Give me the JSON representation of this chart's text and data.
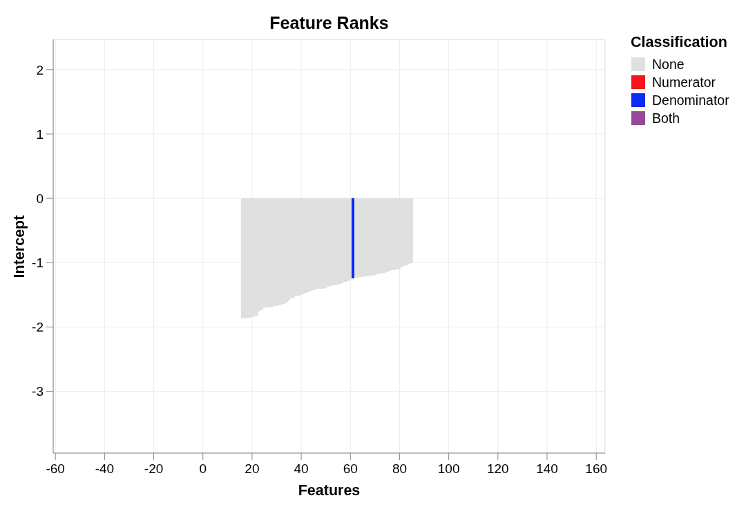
{
  "chart_data": {
    "type": "bar",
    "title": "Feature Ranks",
    "xlabel": "Features",
    "ylabel": "Intercept",
    "legend_title": "Classification",
    "legend": "top right",
    "grid": true,
    "xlim": [
      -60.9,
      163.6
    ],
    "xticks": [
      -60,
      -40,
      -20,
      0,
      20,
      40,
      60,
      80,
      100,
      120,
      140,
      160
    ],
    "ylim": [
      -3.96,
      2.47
    ],
    "yticks": [
      -3,
      -2,
      -1,
      0,
      1,
      2
    ],
    "x": [
      16,
      17,
      18,
      19,
      20,
      21,
      22,
      23,
      24,
      25,
      26,
      27,
      28,
      29,
      30,
      31,
      32,
      33,
      34,
      35,
      36,
      37,
      38,
      39,
      40,
      41,
      42,
      43,
      44,
      45,
      46,
      47,
      48,
      49,
      50,
      51,
      52,
      53,
      54,
      55,
      56,
      57,
      58,
      59,
      60,
      61,
      62,
      63,
      64,
      65,
      66,
      67,
      68,
      69,
      70,
      71,
      72,
      73,
      74,
      75,
      76,
      77,
      78,
      79,
      80,
      81,
      82,
      83,
      84,
      85
    ],
    "series": [
      {
        "name": "None",
        "color": "#e0e0e0",
        "values": [
          -1.87,
          -1.87,
          -1.86,
          -1.86,
          -1.85,
          -1.83,
          -1.82,
          -1.76,
          -1.74,
          -1.71,
          -1.7,
          -1.69,
          -1.69,
          -1.67,
          -1.67,
          -1.66,
          -1.65,
          -1.64,
          -1.62,
          -1.59,
          -1.56,
          -1.54,
          -1.52,
          -1.51,
          -1.5,
          -1.48,
          -1.47,
          -1.46,
          -1.44,
          -1.43,
          -1.42,
          -1.41,
          -1.4,
          -1.4,
          -1.39,
          -1.37,
          -1.36,
          -1.35,
          -1.35,
          -1.34,
          -1.33,
          -1.31,
          -1.3,
          -1.29,
          -1.27,
          null,
          -1.23,
          -1.23,
          -1.22,
          -1.22,
          -1.21,
          -1.21,
          -1.2,
          -1.2,
          -1.19,
          -1.18,
          -1.17,
          -1.17,
          -1.16,
          -1.15,
          -1.13,
          -1.12,
          -1.11,
          -1.1,
          -1.09,
          -1.06,
          -1.05,
          -1.04,
          -1.02,
          -1.01
        ]
      },
      {
        "name": "Numerator",
        "color": "#f8141e",
        "values": [
          null,
          null,
          null,
          null,
          null,
          null,
          null,
          null,
          null,
          null,
          null,
          null,
          null,
          null,
          null,
          null,
          null,
          null,
          null,
          null,
          null,
          null,
          null,
          null,
          null,
          null,
          null,
          null,
          null,
          null,
          null,
          null,
          null,
          null,
          null,
          null,
          null,
          null,
          null,
          null,
          null,
          null,
          null,
          null,
          null,
          null,
          null,
          null,
          null,
          null,
          null,
          null,
          null,
          null,
          null,
          null,
          null,
          null,
          null,
          null,
          null,
          null,
          null,
          null,
          null,
          null,
          null,
          null,
          null,
          null
        ]
      },
      {
        "name": "Denominator",
        "color": "#0b2af5",
        "values": [
          null,
          null,
          null,
          null,
          null,
          null,
          null,
          null,
          null,
          null,
          null,
          null,
          null,
          null,
          null,
          null,
          null,
          null,
          null,
          null,
          null,
          null,
          null,
          null,
          null,
          null,
          null,
          null,
          null,
          null,
          null,
          null,
          null,
          null,
          null,
          null,
          null,
          null,
          null,
          null,
          null,
          null,
          null,
          null,
          null,
          -1.24,
          null,
          null,
          null,
          null,
          null,
          null,
          null,
          null,
          null,
          null,
          null,
          null,
          null,
          null,
          null,
          null,
          null,
          null,
          null,
          null,
          null,
          null,
          null,
          null
        ]
      },
      {
        "name": "Both",
        "color": "#974a97",
        "values": [
          null,
          null,
          null,
          null,
          null,
          null,
          null,
          null,
          null,
          null,
          null,
          null,
          null,
          null,
          null,
          null,
          null,
          null,
          null,
          null,
          null,
          null,
          null,
          null,
          null,
          null,
          null,
          null,
          null,
          null,
          null,
          null,
          null,
          null,
          null,
          null,
          null,
          null,
          null,
          null,
          null,
          null,
          null,
          null,
          null,
          null,
          null,
          null,
          null,
          null,
          null,
          null,
          null,
          null,
          null,
          null,
          null,
          null,
          null,
          null,
          null,
          null,
          null,
          null,
          null,
          null,
          null,
          null,
          null,
          null
        ]
      }
    ]
  }
}
